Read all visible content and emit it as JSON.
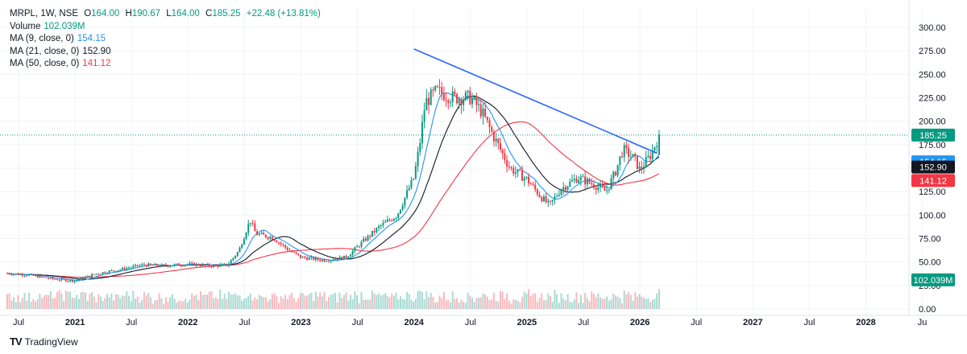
{
  "legend": {
    "symbol_line": "MRPL, 1W, NSE",
    "o_label": "O",
    "o_value": "164.00",
    "h_label": "H",
    "h_value": "190.67",
    "l_label": "L",
    "l_value": "164.00",
    "c_label": "C",
    "c_value": "185.25",
    "change": "+22.48 (+13.81%)",
    "volume_label": "Volume",
    "volume_value": "102.039M",
    "ma9_label": "MA (9, close, 0)",
    "ma9_value": "154.15",
    "ma21_label": "MA (21, close, 0)",
    "ma21_value": "152.90",
    "ma50_label": "MA (50, close, 0)",
    "ma50_value": "141.12"
  },
  "branding": {
    "logo": "TV",
    "name": "TradingView"
  },
  "colors": {
    "up": "#089981",
    "down": "#f23645",
    "ma9": "#2196f3",
    "ma21": "#131722",
    "ma50": "#f23645",
    "trendline": "#2962ff",
    "grid": "#f0f3fa"
  },
  "chart_data": {
    "type": "candlestick",
    "timeframe": "1W",
    "x_tick_labels": [
      "Jul",
      "2021",
      "Jul",
      "2022",
      "Jul",
      "2023",
      "Jul",
      "2024",
      "Jul",
      "2025",
      "Jul",
      "2026",
      "Jul",
      "2027",
      "Jul",
      "2028",
      "Ju"
    ],
    "x_ticks_decimal_year": [
      2020.5,
      2021.0,
      2021.5,
      2022.0,
      2022.5,
      2023.0,
      2023.5,
      2024.0,
      2024.5,
      2025.0,
      2025.5,
      2026.0,
      2026.5,
      2027.0,
      2027.5,
      2028.0,
      2028.5
    ],
    "y_tick_labels": [
      "300.00",
      "275.00",
      "250.00",
      "225.00",
      "200.00",
      "175.00",
      "150.00",
      "125.00",
      "100.00",
      "75.00",
      "50.00",
      "25.00",
      "0.00"
    ],
    "ylim": [
      0,
      300
    ],
    "price_markers": [
      {
        "label": "185.25",
        "value": 185.25,
        "color": "#089981"
      },
      {
        "label": "154.15",
        "value": 154.15,
        "color": "#2196f3"
      },
      {
        "label": "152.90",
        "value": 152.9,
        "color": "#131722"
      },
      {
        "label": "141.12",
        "value": 141.12,
        "color": "#f23645"
      },
      {
        "label": "102.039M",
        "value": 31,
        "color": "#089981"
      }
    ],
    "trendline": {
      "x": [
        2024.0,
        2026.15
      ],
      "y": [
        277,
        166
      ]
    },
    "price_path": [
      [
        2020.4,
        38
      ],
      [
        2020.6,
        36
      ],
      [
        2020.8,
        32
      ],
      [
        2021.0,
        30
      ],
      [
        2021.2,
        38
      ],
      [
        2021.4,
        42
      ],
      [
        2021.6,
        47
      ],
      [
        2021.8,
        46
      ],
      [
        2022.0,
        48
      ],
      [
        2022.2,
        46
      ],
      [
        2022.35,
        47
      ],
      [
        2022.45,
        62
      ],
      [
        2022.55,
        95
      ],
      [
        2022.6,
        80
      ],
      [
        2022.75,
        76
      ],
      [
        2022.9,
        62
      ],
      [
        2023.0,
        55
      ],
      [
        2023.2,
        52
      ],
      [
        2023.4,
        55
      ],
      [
        2023.55,
        72
      ],
      [
        2023.7,
        88
      ],
      [
        2023.85,
        100
      ],
      [
        2024.0,
        140
      ],
      [
        2024.05,
        175
      ],
      [
        2024.1,
        220
      ],
      [
        2024.2,
        232
      ],
      [
        2024.35,
        225
      ],
      [
        2024.5,
        225
      ],
      [
        2024.6,
        210
      ],
      [
        2024.7,
        185
      ],
      [
        2024.85,
        150
      ],
      [
        2025.0,
        138
      ],
      [
        2025.12,
        120
      ],
      [
        2025.2,
        110
      ],
      [
        2025.3,
        128
      ],
      [
        2025.45,
        140
      ],
      [
        2025.6,
        132
      ],
      [
        2025.7,
        125
      ],
      [
        2025.78,
        145
      ],
      [
        2025.85,
        170
      ],
      [
        2025.95,
        160
      ],
      [
        2026.0,
        148
      ],
      [
        2026.1,
        165
      ],
      [
        2026.17,
        185.25
      ]
    ],
    "last_candle": {
      "open": 164.0,
      "high": 190.67,
      "low": 164.0,
      "close": 185.25
    }
  }
}
